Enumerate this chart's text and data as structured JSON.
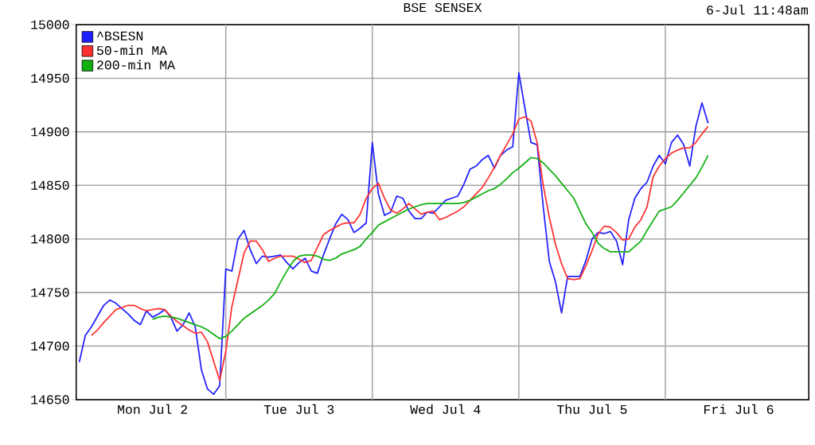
{
  "chart_data": {
    "type": "line",
    "title": "BSE SENSEX",
    "annotations": [
      "6-Jul 11:48am"
    ],
    "categories": [
      null,
      null,
      null,
      null,
      null,
      null,
      null,
      null,
      null,
      null,
      null,
      null,
      "Mon Jul  2",
      null,
      null,
      null,
      null,
      null,
      null,
      null,
      null,
      null,
      null,
      null,
      null,
      null,
      null,
      null,
      null,
      null,
      null,
      null,
      null,
      null,
      null,
      null,
      "Tue Jul  3",
      null,
      null,
      null,
      null,
      null,
      null,
      null,
      null,
      null,
      null,
      null,
      null,
      null,
      null,
      null,
      null,
      null,
      null,
      null,
      null,
      null,
      null,
      null,
      "Wed Jul  4",
      null,
      null,
      null,
      null,
      null,
      null,
      null,
      null,
      null,
      null,
      null,
      null,
      null,
      null,
      null,
      null,
      null,
      null,
      null,
      null,
      null,
      null,
      null,
      "Thu Jul  5",
      null,
      null,
      null,
      null,
      null,
      null,
      null,
      null,
      null,
      null,
      null,
      null,
      null,
      null,
      null,
      null,
      null,
      null,
      null,
      null,
      null,
      null,
      null,
      "Fri Jul  6",
      null,
      null,
      null,
      null,
      null,
      null,
      null,
      null,
      null,
      null,
      null
    ],
    "ylim": [
      14650,
      15000
    ],
    "yticks": [
      14650,
      14700,
      14750,
      14800,
      14850,
      14900,
      14950,
      15000
    ],
    "grid": true,
    "legend": "top left",
    "series": [
      {
        "name": "^BSESN",
        "color": "#2020ff",
        "values": [
          14685,
          14710,
          14718,
          14728,
          14738,
          14743,
          14740,
          14735,
          14730,
          14724,
          14720,
          14733,
          14727,
          14730,
          14734,
          14727,
          14714,
          14720,
          14731,
          14718,
          14678,
          14660,
          14655,
          14663,
          14772,
          14770,
          14800,
          14808,
          14790,
          14777,
          14784,
          14783,
          14784,
          14785,
          14778,
          14772,
          14778,
          14782,
          14770,
          14768,
          14785,
          14800,
          14814,
          14823,
          14818,
          14806,
          14810,
          14815,
          14890,
          14842,
          14822,
          14825,
          14840,
          14838,
          14826,
          14819,
          14819,
          14825,
          14824,
          14830,
          14836,
          14838,
          14840,
          14851,
          14865,
          14868,
          14874,
          14878,
          14866,
          14878,
          14883,
          14886,
          14955,
          14922,
          14890,
          14888,
          14830,
          14779,
          14760,
          14731,
          14765,
          14765,
          14765,
          14780,
          14800,
          14806,
          14805,
          14807,
          14798,
          14776,
          14818,
          14838,
          14847,
          14853,
          14868,
          14878,
          14870,
          14890,
          14897,
          14888,
          14868,
          14905,
          14927,
          14908,
          null,
          null,
          null,
          null,
          null,
          null,
          null,
          null,
          null,
          null,
          null,
          null,
          null,
          null,
          null,
          null
        ]
      },
      {
        "name": "50-min MA",
        "color": "#ff3030",
        "values": [
          null,
          null,
          14710,
          14715,
          14722,
          14728,
          14734,
          14736,
          14738,
          14738,
          14735,
          14733,
          14734,
          14735,
          14734,
          14728,
          14723,
          14719,
          14715,
          14712,
          14713,
          14704,
          14686,
          14668,
          14695,
          14737,
          14762,
          14787,
          14798,
          14798,
          14790,
          14779,
          14782,
          14784,
          14784,
          14784,
          14781,
          14778,
          14780,
          14792,
          14804,
          14808,
          14811,
          14814,
          14815,
          14815,
          14823,
          14838,
          14847,
          14852,
          14838,
          14827,
          14824,
          14828,
          14833,
          14828,
          14823,
          14825,
          14826,
          14818,
          14820,
          14823,
          14826,
          14830,
          14836,
          14842,
          14848,
          14857,
          14867,
          14878,
          14888,
          14898,
          14912,
          14914,
          14910,
          14890,
          14850,
          14820,
          14795,
          14777,
          14763,
          14762,
          14763,
          14775,
          14789,
          14805,
          14812,
          14811,
          14806,
          14799,
          14800,
          14811,
          14818,
          14830,
          14858,
          14868,
          14875,
          14880,
          14883,
          14885,
          14885,
          14890,
          14898,
          14905,
          null,
          null,
          null,
          null,
          null,
          null,
          null,
          null,
          null,
          null,
          null,
          null,
          null,
          null,
          null,
          null
        ]
      },
      {
        "name": "200-min MA",
        "color": "#10b010",
        "values": [
          null,
          null,
          null,
          null,
          null,
          null,
          null,
          null,
          null,
          null,
          null,
          null,
          14725,
          14727,
          14728,
          14727,
          14726,
          14724,
          14722,
          14720,
          14718,
          14715,
          14711,
          14707,
          14709,
          14714,
          14720,
          14726,
          14730,
          14734,
          14738,
          14743,
          14749,
          14760,
          14770,
          14779,
          14784,
          14785,
          14785,
          14784,
          14781,
          14780,
          14782,
          14786,
          14788,
          14790,
          14793,
          14800,
          14806,
          14813,
          14816,
          14819,
          14822,
          14825,
          14828,
          14830,
          14832,
          14833,
          14833,
          14833,
          14833,
          14833,
          14833,
          14834,
          14836,
          14839,
          14842,
          14845,
          14847,
          14851,
          14856,
          14862,
          14866,
          14871,
          14876,
          14875,
          14871,
          14865,
          14859,
          14852,
          14845,
          14838,
          14826,
          14814,
          14806,
          14796,
          14791,
          14788,
          14788,
          14788,
          14788,
          14793,
          14798,
          14808,
          14817,
          14826,
          14828,
          14830,
          14836,
          14843,
          14850,
          14857,
          14867,
          14878,
          null,
          null,
          null,
          null,
          null,
          null,
          null,
          null,
          null,
          null,
          null,
          null,
          null,
          null,
          null,
          null
        ]
      }
    ]
  }
}
